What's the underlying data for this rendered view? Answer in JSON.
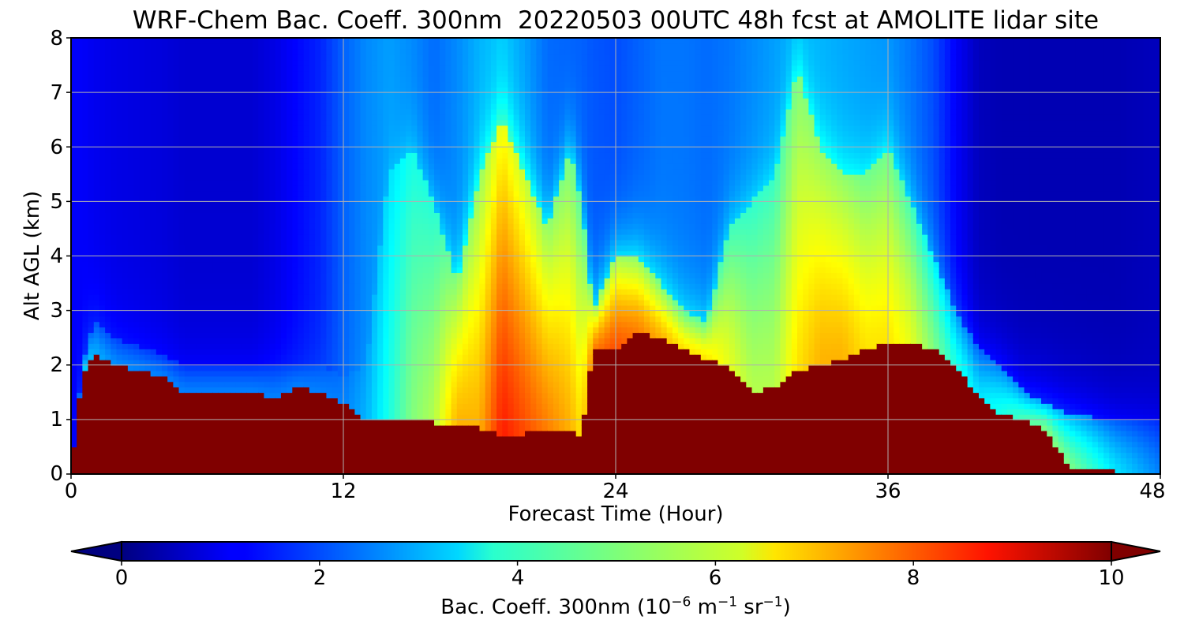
{
  "chart_data": {
    "type": "heatmap",
    "title": "WRF-Chem Bac. Coeff. 300nm  20220503 00UTC 48h fcst at AMOLITE lidar site",
    "xlabel": "Forecast Time (Hour)",
    "ylabel": "Alt AGL (km)",
    "xlim": [
      0,
      48
    ],
    "ylim": [
      0,
      8
    ],
    "xticks": [
      "0",
      "12",
      "24",
      "36",
      "48"
    ],
    "yticks": [
      "0",
      "1",
      "2",
      "3",
      "4",
      "5",
      "6",
      "7",
      "8"
    ],
    "grid": true,
    "colormap": "jet",
    "colorbar": {
      "orientation": "horizontal",
      "placement": "bottom",
      "extend": "both",
      "range": [
        0,
        10
      ],
      "ticks": [
        "0",
        "2",
        "4",
        "6",
        "8",
        "10"
      ],
      "label_main": "Bac. Coeff. 300nm",
      "label_unit_base": "10",
      "label_unit_exp1": "−6",
      "label_unit_m": " m",
      "label_unit_exp2": "−1",
      "label_unit_sr": " sr",
      "label_unit_exp3": "−1"
    },
    "hours": [
      0,
      0.5,
      1,
      2,
      4,
      5,
      7,
      8,
      9,
      10,
      11,
      12,
      13,
      14,
      15,
      16,
      17,
      18,
      19,
      20,
      21,
      22,
      22.5,
      23,
      24,
      25,
      26,
      27,
      28,
      29,
      30,
      31,
      32,
      33,
      34,
      35,
      36,
      37,
      38,
      39,
      40,
      41,
      42,
      43,
      44,
      46,
      48
    ],
    "layer_top_km": [
      0,
      1.8,
      2.2,
      2.0,
      1.8,
      1.5,
      1.5,
      1.5,
      1.4,
      1.6,
      1.5,
      1.3,
      1.0,
      1.0,
      1.0,
      0.95,
      0.9,
      0.85,
      0.7,
      0.75,
      0.8,
      0.8,
      0.7,
      2.3,
      2.3,
      2.6,
      2.5,
      2.3,
      2.1,
      2.0,
      1.5,
      1.6,
      1.9,
      2.0,
      2.1,
      2.3,
      2.4,
      2.4,
      2.3,
      2.0,
      1.4,
      1.1,
      1.0,
      0.8,
      0.1,
      0.05,
      0.02
    ],
    "aerosol_top_km": [
      0,
      2.0,
      2.8,
      2.5,
      2.2,
      2.0,
      2.0,
      2.0,
      2.0,
      2.0,
      2.0,
      1.8,
      2.0,
      5.5,
      6.0,
      5.0,
      3.5,
      5.5,
      6.5,
      5.5,
      4.5,
      6.0,
      5.0,
      3.0,
      4.0,
      4.0,
      3.5,
      3.0,
      2.8,
      4.5,
      5.0,
      5.5,
      7.5,
      6.0,
      5.5,
      5.5,
      6.0,
      5.0,
      4.0,
      3.0,
      2.3,
      2.0,
      1.5,
      1.3,
      1.1,
      1.0,
      1.0
    ],
    "aerosol_peak_value": [
      0,
      3.5,
      3.0,
      2.6,
      2.5,
      2.5,
      2.5,
      2.5,
      2.5,
      2.5,
      2.5,
      2.5,
      3.0,
      4.0,
      5.0,
      5.5,
      7.0,
      7.0,
      8.5,
      8.0,
      7.5,
      7.0,
      6.5,
      7.5,
      8.0,
      7.5,
      7.0,
      6.5,
      6.5,
      6.0,
      5.5,
      5.5,
      6.5,
      7.0,
      7.0,
      6.5,
      6.5,
      6.0,
      5.0,
      4.0,
      3.5,
      4.0,
      4.5,
      5.0,
      5.0,
      3.5,
      2.5
    ],
    "upper_background_value": [
      1.2,
      1.2,
      1.1,
      1.0,
      0.9,
      0.8,
      0.8,
      0.8,
      1.0,
      1.3,
      1.6,
      2.2,
      2.6,
      2.8,
      2.6,
      2.3,
      2.6,
      3.0,
      3.2,
      2.8,
      2.3,
      2.2,
      2.2,
      2.1,
      2.0,
      2.2,
      2.4,
      2.4,
      2.3,
      2.4,
      2.6,
      2.8,
      3.0,
      3.0,
      2.9,
      2.8,
      2.7,
      2.4,
      2.0,
      1.2,
      0.6,
      0.5,
      0.5,
      0.5,
      0.5,
      0.5,
      0.6
    ]
  }
}
